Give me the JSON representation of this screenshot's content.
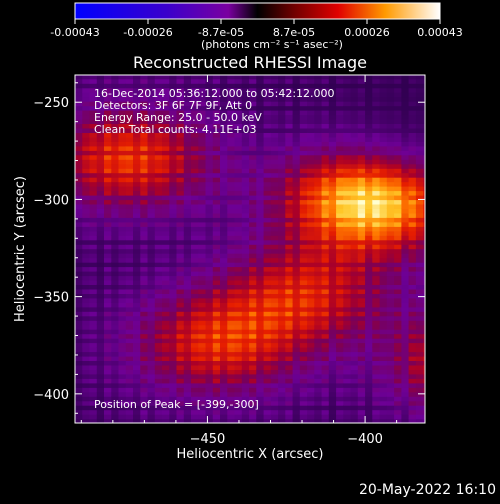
{
  "colorbar": {
    "tick_labels": [
      "-0.00043",
      "-0.00026",
      "-8.7e-05",
      "8.7e-05",
      "0.00026",
      "0.00043"
    ],
    "unit_label": "(photons cm⁻² s⁻¹ asec⁻²)",
    "range": [
      -0.00043,
      0.00043
    ]
  },
  "chart_data": {
    "type": "heatmap",
    "title": "Reconstructed RHESSI Image",
    "xlabel": "Heliocentric X (arcsec)",
    "ylabel": "Heliocentric Y (arcsec)",
    "xlim": [
      -492,
      -381
    ],
    "ylim": [
      -415,
      -236
    ],
    "x_ticks": [
      -450,
      -400,
      -350
    ],
    "y_ticks": [
      -250,
      -300,
      -350,
      -400
    ],
    "annotations": [
      "16-Dec-2014 05:36:12.000 to 05:42:12.000",
      "Detectors: 3F 6F 7F 9F, Att 0",
      "Energy Range: 25.0 - 50.0 keV",
      "Clean     Total counts: 4.11E+03"
    ],
    "peak_text": "Position of Peak = [-399,-300]",
    "peak_position": [
      -399,
      -300
    ],
    "sources": [
      {
        "x": -399,
        "y": -300,
        "intensity": 1.0
      },
      {
        "x": -476,
        "y": -280,
        "intensity": 0.55
      },
      {
        "x": -362,
        "y": -385,
        "intensity": 0.7
      },
      {
        "x": -448,
        "y": -375,
        "intensity": 0.5
      },
      {
        "x": -420,
        "y": -350,
        "intensity": 0.45
      }
    ]
  },
  "footer": {
    "date_stamp": "20-May-2022 16:10"
  }
}
